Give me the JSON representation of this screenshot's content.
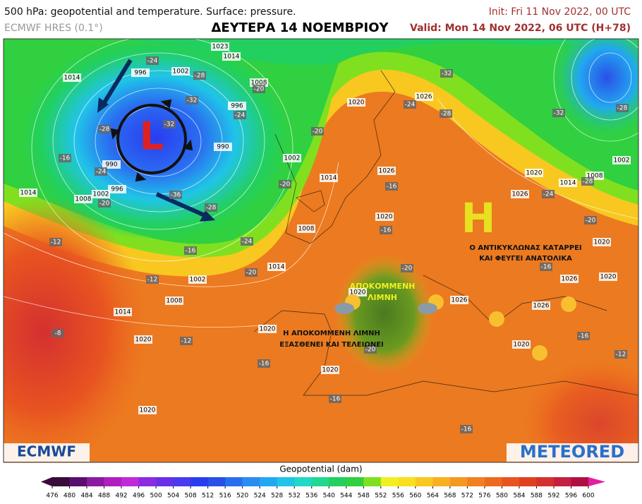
{
  "header": {
    "title_left": "500 hPa: geopotential and temperature. Surface: pressure.",
    "model": "ECMWF HRES (0.1°)",
    "title_center": "ΔΕΥΤΕΡΑ 14 ΝΟΕΜΒΡΙΟΥ",
    "init": "Init: Fri 11 Nov 2022, 00 UTC",
    "valid": "Valid: Mon 14 Nov 2022, 06 UTC (H+78)"
  },
  "map": {
    "low_symbol": "L",
    "high_symbol": "H",
    "annotation_high": [
      "Ο ΑΝΤΙΚΥΚΛΩΝΑΣ ΚΑΤΑΡΡΕΙ",
      "ΚΑΙ ΦΕΥΓΕΙ ΑΝΑΤΟΛΙΚΑ"
    ],
    "annotation_cutoff": [
      "ΑΠΟΚΟΜΜΕΝΗ",
      "ΛΙΜΝΗ"
    ],
    "annotation_cutoff_end": [
      "Η ΑΠΟΚΟΜΜΕΝΗ ΛΙΜΝΗ",
      "ΕΞΑΣΘΕΝΕΙ ΚΑΙ ΤΕΛΕΙΩΝΕΙ"
    ],
    "pressure_labels": [
      "1014",
      "996",
      "1002",
      "1023",
      "1014",
      "1008",
      "996",
      "990",
      "990",
      "996",
      "1002",
      "1008",
      "1014",
      "1002",
      "1014",
      "1008",
      "1020",
      "1026",
      "1026",
      "1020",
      "1014",
      "1002",
      "1008",
      "1014",
      "1020",
      "1020",
      "1020",
      "1020",
      "1020",
      "1026",
      "1014",
      "1008",
      "1002",
      "1020",
      "1026",
      "1020",
      "1026",
      "1026",
      "1020",
      "1020"
    ],
    "temperature_labels": [
      "-24",
      "-28",
      "-32",
      "-28",
      "-32",
      "-24",
      "-20",
      "-16",
      "-24",
      "-20",
      "-36",
      "-28",
      "-24",
      "-16",
      "-12",
      "-20",
      "-12",
      "-8",
      "-12",
      "-16",
      "-20",
      "-20",
      "-16",
      "-16",
      "-24",
      "-28",
      "-32",
      "-32",
      "-28",
      "-24",
      "-28",
      "-20",
      "-16",
      "-16",
      "-12",
      "-16",
      "-16",
      "-20",
      "-20"
    ]
  },
  "logos": {
    "left": "ECMWF",
    "right": "METEORED"
  },
  "colorbar": {
    "label": "Geopotential (dam)",
    "ticks": [
      476,
      480,
      484,
      488,
      492,
      496,
      500,
      504,
      508,
      512,
      516,
      520,
      524,
      528,
      532,
      536,
      540,
      544,
      548,
      552,
      556,
      560,
      564,
      568,
      572,
      576,
      580,
      584,
      588,
      592,
      596,
      600
    ],
    "colors": [
      "#3a0a3a",
      "#5a0e6e",
      "#8a1a9e",
      "#b01ec0",
      "#c02ad8",
      "#8a2be2",
      "#6a2ee8",
      "#4a3af0",
      "#2a3cf0",
      "#2850e8",
      "#2a6ef0",
      "#2a8cf0",
      "#22a8f0",
      "#20c4e8",
      "#20d8c8",
      "#20d890",
      "#22d060",
      "#30d040",
      "#80e020",
      "#f0f020",
      "#f8e020",
      "#f8c820",
      "#f8b020",
      "#f49820",
      "#f08020",
      "#ec6a20",
      "#e85420",
      "#e04020",
      "#d43030",
      "#c42040",
      "#b01040"
    ]
  }
}
